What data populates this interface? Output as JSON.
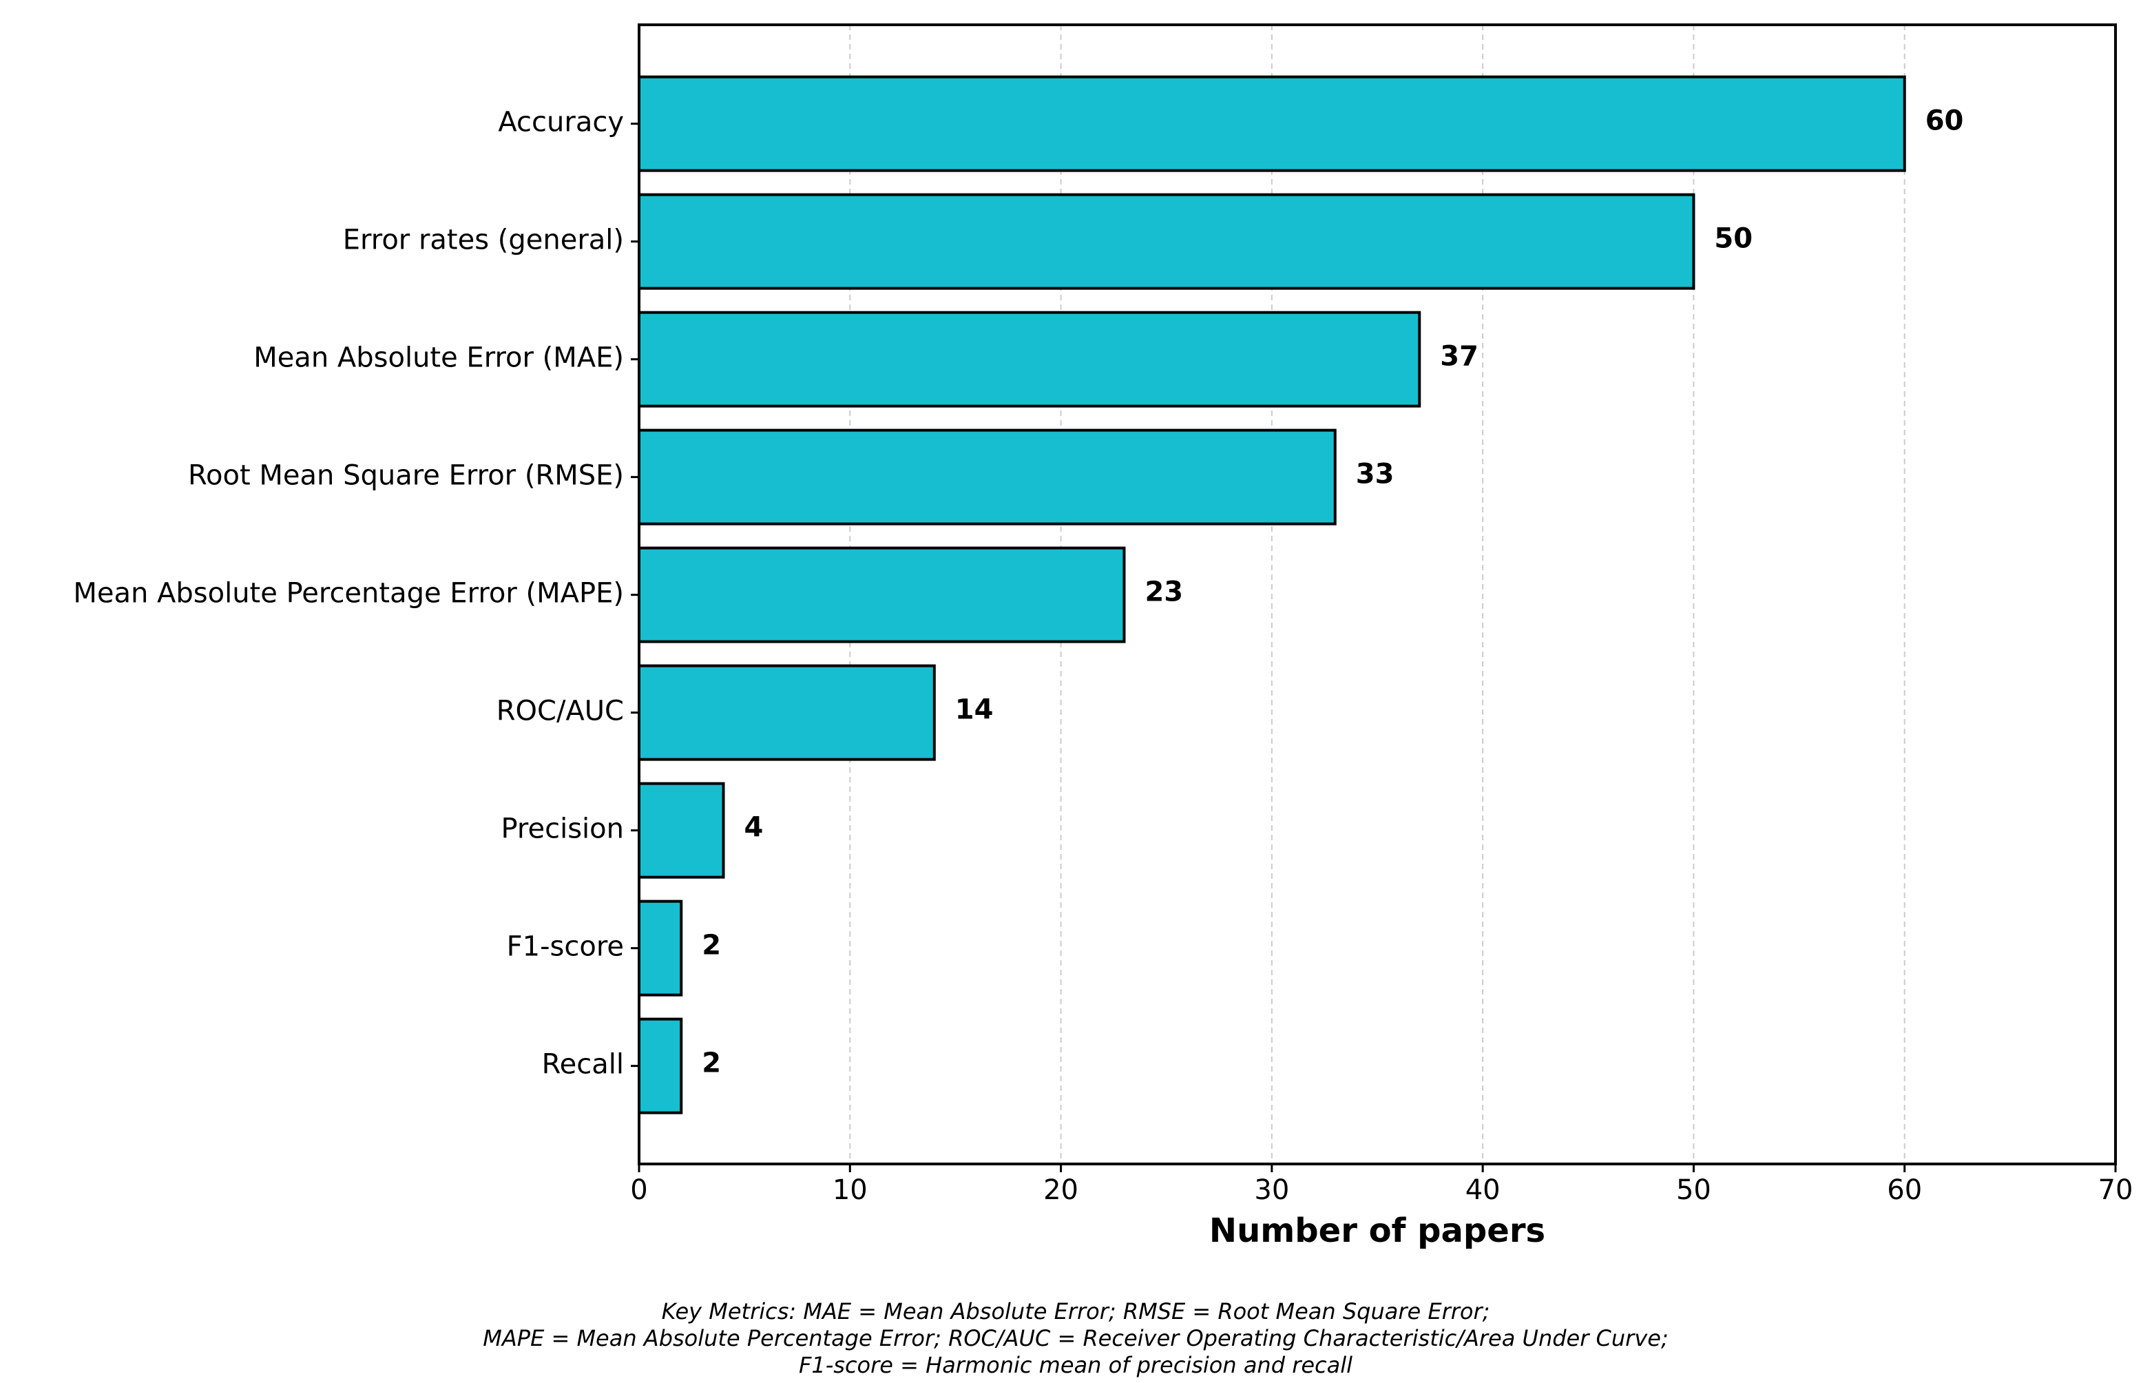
{
  "chart_data": {
    "type": "hbar",
    "xlabel": "Number of papers",
    "categories": [
      "Accuracy",
      "Error rates (general)",
      "Mean Absolute Error (MAE)",
      "Root Mean Square Error (RMSE)",
      "Mean Absolute Percentage Error (MAPE)",
      "ROC/AUC",
      "Precision",
      "F1-score",
      "Recall"
    ],
    "values": [
      60,
      50,
      37,
      33,
      23,
      14,
      4,
      2,
      2
    ],
    "color": "#17becf",
    "xlim": [
      0,
      70
    ],
    "xticks": [
      0,
      10,
      20,
      30,
      40,
      50,
      60,
      70
    ],
    "grid": true,
    "footnote": [
      "Key Metrics: MAE = Mean Absolute Error; RMSE = Root Mean Square Error;",
      "MAPE = Mean Absolute Percentage Error; ROC/AUC = Receiver Operating Characteristic/Area Under Curve;",
      "F1-score = Harmonic mean of precision and recall"
    ]
  }
}
